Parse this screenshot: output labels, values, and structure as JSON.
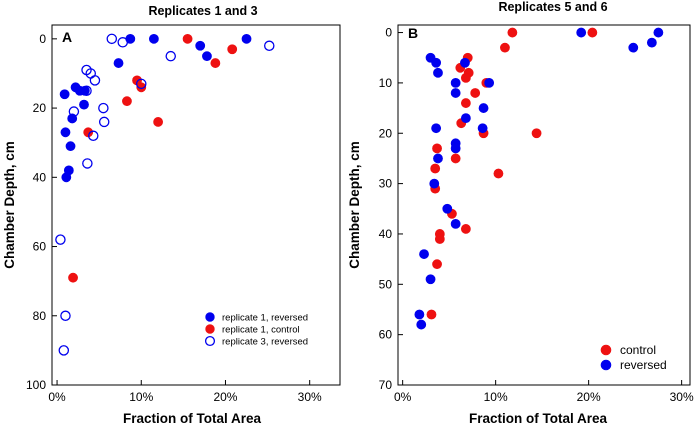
{
  "chart_data": [
    {
      "type": "scatter",
      "panel": "A",
      "title": "Replicates 1 and 3",
      "xlabel": "Fraction of Total Area",
      "ylabel": "Chamber Depth, cm",
      "xlim": [
        -0.006,
        0.336
      ],
      "ylim": [
        100,
        -4
      ],
      "x_ticks": [
        0,
        0.1,
        0.2,
        0.3
      ],
      "x_tick_labels": [
        "0%",
        "10%",
        "20%",
        "30%"
      ],
      "y_ticks": [
        0,
        20,
        40,
        60,
        80,
        100
      ],
      "y_tick_labels": [
        "0",
        "20",
        "40",
        "60",
        "80",
        "100"
      ],
      "legend_position": "bottom-right",
      "series": [
        {
          "name": "replicate 1, reversed",
          "color": "#0000ee",
          "marker": "filled",
          "points": [
            [
              0.115,
              0
            ],
            [
              0.087,
              0
            ],
            [
              0.073,
              7
            ],
            [
              0.009,
              16
            ],
            [
              0.022,
              14
            ],
            [
              0.027,
              15
            ],
            [
              0.033,
              15
            ],
            [
              0.032,
              19
            ],
            [
              0.018,
              23
            ],
            [
              0.01,
              27
            ],
            [
              0.016,
              31
            ],
            [
              0.014,
              38
            ],
            [
              0.011,
              40
            ],
            [
              0.17,
              2
            ],
            [
              0.178,
              5
            ],
            [
              0.225,
              0
            ]
          ]
        },
        {
          "name": "replicate 1, control",
          "color": "#ee1111",
          "marker": "filled",
          "points": [
            [
              0.155,
              0
            ],
            [
              0.208,
              3
            ],
            [
              0.188,
              7
            ],
            [
              0.095,
              12
            ],
            [
              0.1,
              14
            ],
            [
              0.083,
              18
            ],
            [
              0.12,
              24
            ],
            [
              0.037,
              27
            ],
            [
              0.019,
              69
            ]
          ]
        },
        {
          "name": "replicate 3, reversed",
          "color": "#0000ee",
          "marker": "open",
          "points": [
            [
              0.065,
              0
            ],
            [
              0.078,
              1
            ],
            [
              0.135,
              5
            ],
            [
              0.252,
              2
            ],
            [
              0.035,
              9
            ],
            [
              0.04,
              10
            ],
            [
              0.045,
              12
            ],
            [
              0.035,
              15
            ],
            [
              0.02,
              21
            ],
            [
              0.055,
              20
            ],
            [
              0.056,
              24
            ],
            [
              0.043,
              28
            ],
            [
              0.036,
              36
            ],
            [
              0.004,
              58
            ],
            [
              0.01,
              80
            ],
            [
              0.008,
              90
            ],
            [
              0.1,
              13
            ]
          ]
        }
      ]
    },
    {
      "type": "scatter",
      "panel": "B",
      "title": "Replicates 5 and 6",
      "xlabel": "Fraction of Total Area",
      "ylabel": "Chamber Depth, cm",
      "xlim": [
        -0.005,
        0.309
      ],
      "ylim": [
        70,
        -1.5
      ],
      "x_ticks": [
        0,
        0.1,
        0.2,
        0.3
      ],
      "x_tick_labels": [
        "0%",
        "10%",
        "20%",
        "30%"
      ],
      "y_ticks": [
        0,
        10,
        20,
        30,
        40,
        50,
        60,
        70
      ],
      "y_tick_labels": [
        "0",
        "10",
        "20",
        "30",
        "40",
        "50",
        "60",
        "70"
      ],
      "legend_position": "bottom-right",
      "series": [
        {
          "name": "control",
          "color": "#ee1111",
          "marker": "filled",
          "points": [
            [
              0.118,
              0
            ],
            [
              0.11,
              3
            ],
            [
              0.07,
              5
            ],
            [
              0.062,
              7
            ],
            [
              0.071,
              8
            ],
            [
              0.068,
              9
            ],
            [
              0.09,
              10
            ],
            [
              0.078,
              12
            ],
            [
              0.068,
              14
            ],
            [
              0.063,
              18
            ],
            [
              0.087,
              20
            ],
            [
              0.144,
              20
            ],
            [
              0.057,
              25
            ],
            [
              0.037,
              23
            ],
            [
              0.035,
              27
            ],
            [
              0.103,
              28
            ],
            [
              0.035,
              31
            ],
            [
              0.053,
              36
            ],
            [
              0.068,
              39
            ],
            [
              0.04,
              40
            ],
            [
              0.04,
              41
            ],
            [
              0.037,
              46
            ],
            [
              0.031,
              56
            ],
            [
              0.204,
              0
            ]
          ]
        },
        {
          "name": "reversed",
          "color": "#0000ee",
          "marker": "filled",
          "points": [
            [
              0.192,
              0
            ],
            [
              0.275,
              0
            ],
            [
              0.268,
              2
            ],
            [
              0.248,
              3
            ],
            [
              0.03,
              5
            ],
            [
              0.036,
              6
            ],
            [
              0.067,
              6
            ],
            [
              0.038,
              8
            ],
            [
              0.093,
              10
            ],
            [
              0.057,
              10
            ],
            [
              0.057,
              12
            ],
            [
              0.087,
              15
            ],
            [
              0.068,
              17
            ],
            [
              0.036,
              19
            ],
            [
              0.086,
              19
            ],
            [
              0.057,
              22
            ],
            [
              0.057,
              23
            ],
            [
              0.038,
              25
            ],
            [
              0.034,
              30
            ],
            [
              0.048,
              35
            ],
            [
              0.057,
              38
            ],
            [
              0.023,
              44
            ],
            [
              0.03,
              49
            ],
            [
              0.018,
              56
            ],
            [
              0.02,
              58
            ]
          ]
        }
      ]
    }
  ]
}
